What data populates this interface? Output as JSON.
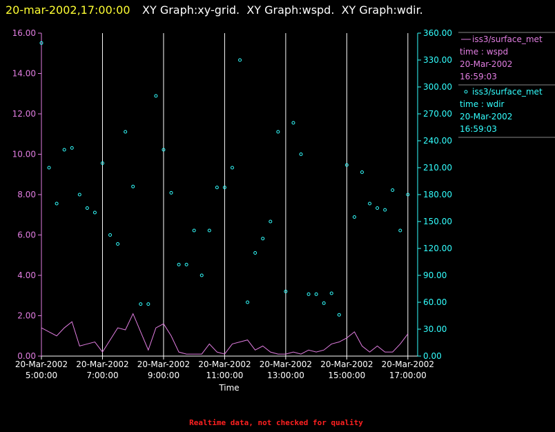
{
  "chart_data": {
    "type": "line-scatter",
    "title_time": "20-mar-2002,17:00:00",
    "title": "XY Graph:xy-grid.  XY Graph:wspd.  XY Graph:wdir.",
    "x_label": "Time",
    "note": "Realtime data, not checked for quality",
    "xlim": [
      5,
      17.32
    ],
    "xticks": [
      {
        "value": 5,
        "label": "20-Mar-2002\n5:00:00"
      },
      {
        "value": 7,
        "label": "20-Mar-2002\n7:00:00"
      },
      {
        "value": 9,
        "label": "20-Mar-2002\n9:00:00"
      },
      {
        "value": 11,
        "label": "20-Mar-2002\n11:00:00"
      },
      {
        "value": 13,
        "label": "20-Mar-2002\n13:00:00"
      },
      {
        "value": 15,
        "label": "20-Mar-2002\n15:00:00"
      },
      {
        "value": 17,
        "label": "20-Mar-2002\n17:00:00"
      }
    ],
    "ylim": [
      0,
      16
    ],
    "yticks": [
      {
        "value": 0,
        "label": "0.00"
      },
      {
        "value": 2,
        "label": "2.00"
      },
      {
        "value": 4,
        "label": "4.00"
      },
      {
        "value": 6,
        "label": "6.00"
      },
      {
        "value": 8,
        "label": "8.00"
      },
      {
        "value": 10,
        "label": "10.00"
      },
      {
        "value": 12,
        "label": "12.00"
      },
      {
        "value": 14,
        "label": "14.00"
      },
      {
        "value": 16,
        "label": "16.00"
      }
    ],
    "y2lim": [
      0,
      360
    ],
    "y2ticks": [
      {
        "value": 0,
        "label": "0.00"
      },
      {
        "value": 30,
        "label": "30.00"
      },
      {
        "value": 60,
        "label": "60.00"
      },
      {
        "value": 90,
        "label": "90.00"
      },
      {
        "value": 120,
        "label": "120.00"
      },
      {
        "value": 150,
        "label": "150.00"
      },
      {
        "value": 180,
        "label": "180.00"
      },
      {
        "value": 210,
        "label": "210.00"
      },
      {
        "value": 240,
        "label": "240.00"
      },
      {
        "value": 270,
        "label": "270.00"
      },
      {
        "value": 300,
        "label": "300.00"
      },
      {
        "value": 330,
        "label": "330.00"
      },
      {
        "value": 360,
        "label": "360.00"
      }
    ],
    "grid": true,
    "x": [
      5,
      5.25,
      5.5,
      5.75,
      6,
      6.25,
      6.5,
      6.75,
      7,
      7.25,
      7.5,
      7.75,
      8,
      8.25,
      8.5,
      8.75,
      9,
      9.25,
      9.5,
      9.75,
      10,
      10.25,
      10.5,
      10.75,
      11,
      11.25,
      11.5,
      11.75,
      12,
      12.25,
      12.5,
      12.75,
      13,
      13.25,
      13.5,
      13.75,
      14,
      14.25,
      14.5,
      14.75,
      15,
      15.25,
      15.5,
      15.75,
      16,
      16.25,
      16.5,
      16.75,
      17
    ],
    "series": [
      {
        "name": "iss3/surface_met",
        "legend_detail": [
          "time : wspd",
          "20-Mar-2002",
          "16:59:03"
        ],
        "color": "#e27ee2",
        "kind": "line",
        "axis": "y",
        "values": [
          1.4,
          1.2,
          1.0,
          1.4,
          1.7,
          0.5,
          0.6,
          0.7,
          0.2,
          0.8,
          1.4,
          1.3,
          2.1,
          1.2,
          0.3,
          1.4,
          1.6,
          1.0,
          0.2,
          0.1,
          0.1,
          0.1,
          0.6,
          0.2,
          0.1,
          0.6,
          0.7,
          0.8,
          0.3,
          0.5,
          0.2,
          0.1,
          0.1,
          0.2,
          0.1,
          0.3,
          0.2,
          0.3,
          0.6,
          0.7,
          0.9,
          1.2,
          0.5,
          0.2,
          0.5,
          0.2,
          0.2,
          0.6,
          1.1
        ]
      },
      {
        "name": "iss3/surface_met",
        "legend_detail": [
          "time : wdir",
          "20-Mar-2002",
          "16:59:03"
        ],
        "color": "#33ffff",
        "kind": "scatter",
        "axis": "y2",
        "values": [
          349,
          210,
          170,
          230,
          232,
          180,
          165,
          160,
          215,
          135,
          125,
          250,
          189,
          58,
          58,
          290,
          230,
          182,
          102,
          102,
          140,
          90,
          140,
          188,
          188,
          210,
          330,
          60,
          115,
          131,
          150,
          250,
          72,
          260,
          225,
          69,
          69,
          59,
          70,
          46,
          213,
          155,
          205,
          170,
          165,
          163,
          185,
          140,
          180
        ]
      }
    ]
  }
}
